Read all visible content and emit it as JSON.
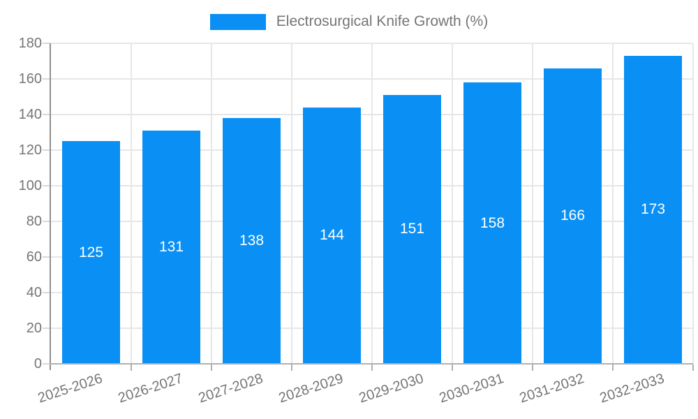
{
  "chart_data": {
    "type": "bar",
    "title": "Electrosurgical Knife Growth (%)",
    "categories": [
      "2025-2026",
      "2026-2027",
      "2027-2028",
      "2028-2029",
      "2029-2030",
      "2030-2031",
      "2031-2032",
      "2032-2033"
    ],
    "values": [
      125,
      131,
      138,
      144,
      151,
      158,
      166,
      173
    ],
    "xlabel": "",
    "ylabel": "",
    "ylim": [
      0,
      180
    ],
    "ytick_step": 20,
    "yticks": [
      0,
      20,
      40,
      60,
      80,
      100,
      120,
      140,
      160,
      180
    ],
    "grid": true,
    "legend_position": "top",
    "bar_color": "#0a90f5",
    "value_label_color": "#ffffff",
    "axis_text_color": "#757575",
    "gridline_color": "#e6e6e6"
  }
}
